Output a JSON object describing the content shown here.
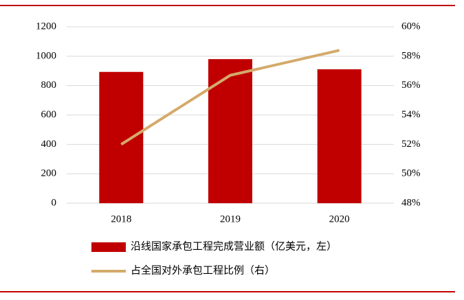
{
  "chart_data": {
    "type": "bar_line",
    "categories": [
      "2018",
      "2019",
      "2020"
    ],
    "series": [
      {
        "name": "沿线国家承包工程完成营业额（亿美元，左）",
        "color": "#c00000",
        "values": [
          893,
          980,
          911
        ]
      },
      {
        "name": "占全国对外承包工程比例（右）",
        "color": "#d4aa6a",
        "values": [
          52,
          56.7,
          58.4
        ],
        "axis": "y2"
      }
    ],
    "ylim": [
      0,
      1200
    ],
    "yticks": [
      0,
      200,
      400,
      600,
      800,
      1000,
      1200
    ],
    "y2lim": [
      48,
      60
    ],
    "y2ticks": [
      {
        "value": 48,
        "label": "48%"
      },
      {
        "value": 50,
        "label": "50%"
      },
      {
        "value": 52,
        "label": "52%"
      },
      {
        "value": 54,
        "label": "54%"
      },
      {
        "value": 56,
        "label": "56%"
      },
      {
        "value": 58,
        "label": "58%"
      },
      {
        "value": 60,
        "label": "60%"
      }
    ],
    "grid": true
  }
}
